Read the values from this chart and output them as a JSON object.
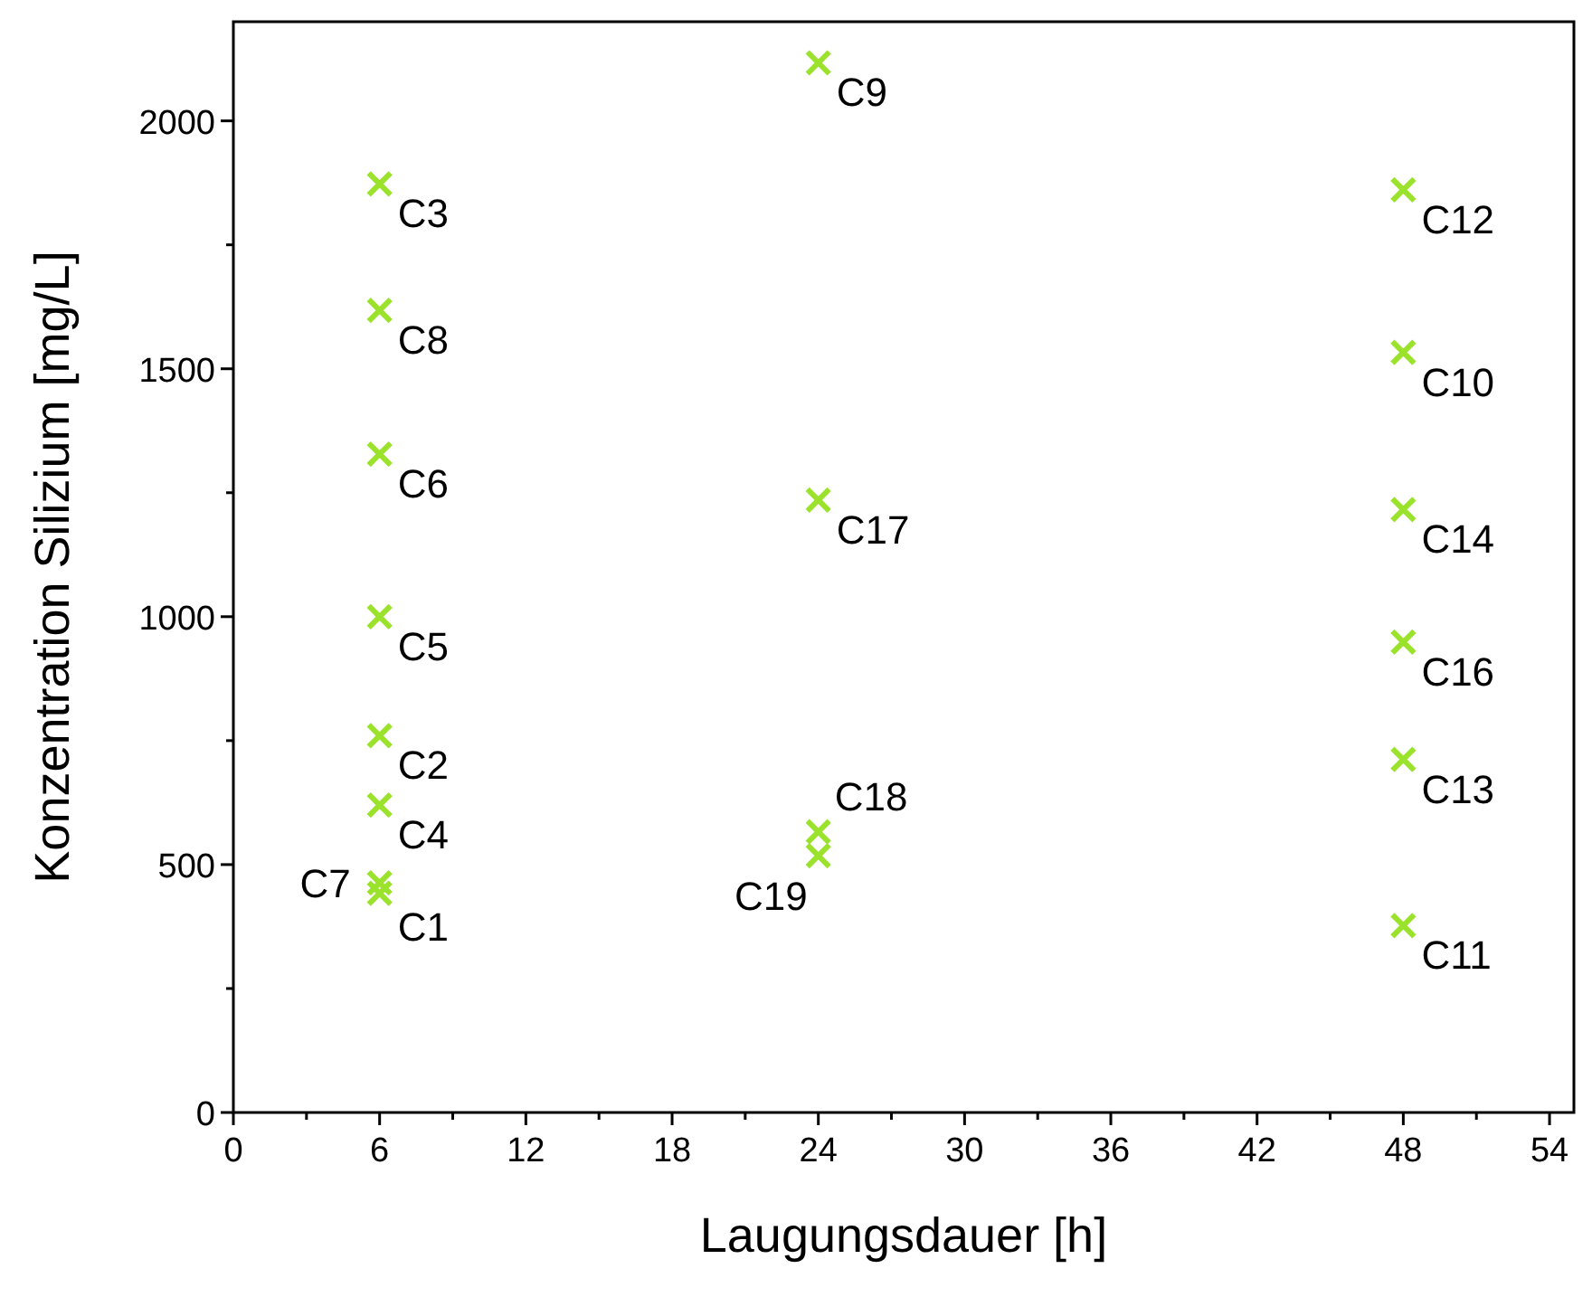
{
  "chart_data": {
    "type": "scatter",
    "xlabel": "Laugungsdauer [h]",
    "ylabel": "Konzentration Silizium [mg/L]",
    "x": [
      6,
      6,
      6,
      6,
      6,
      6,
      6,
      6,
      24,
      48,
      48,
      48,
      48,
      48,
      48,
      24,
      24,
      24
    ],
    "series": [
      {
        "color": "#9be22c",
        "values": [
          442,
          760,
          1873,
          620,
          1000,
          1328,
          463,
          1618,
          2117,
          1533,
          377,
          1861,
          712,
          1216,
          949,
          1235,
          566,
          518
        ]
      }
    ],
    "xlim": [
      0,
      55
    ],
    "xticks": [
      0,
      {
        "value": 3,
        "label": null
      },
      6,
      {
        "value": 9,
        "label": null
      },
      12,
      {
        "value": 15,
        "label": null
      },
      18,
      {
        "value": 21,
        "label": null
      },
      24,
      {
        "value": 27,
        "label": null
      },
      30,
      {
        "value": 33,
        "label": null
      },
      36,
      {
        "value": 39,
        "label": null
      },
      42,
      {
        "value": 45,
        "label": null
      },
      48,
      {
        "value": 51,
        "label": null
      },
      54
    ],
    "ylim": [
      0,
      2200
    ],
    "yticks": [
      0,
      {
        "value": 250,
        "label": null
      },
      500,
      {
        "value": 750,
        "label": null
      },
      1000,
      {
        "value": 1250,
        "label": null
      },
      1500,
      {
        "value": 1750,
        "label": null
      },
      2000
    ],
    "marker": "cross",
    "grid": false,
    "annotations": [
      {
        "text": "C1",
        "x": 6,
        "y": 442
      },
      {
        "text": "C2",
        "x": 6,
        "y": 760
      },
      {
        "text": "C3",
        "x": 6,
        "y": 1873
      },
      {
        "text": "C4",
        "x": 6,
        "y": 620
      },
      {
        "text": "C5",
        "x": 6,
        "y": 1000
      },
      {
        "text": "C6",
        "x": 6,
        "y": 1328
      },
      {
        "text": "C7",
        "x": 6,
        "y": 463
      },
      {
        "text": "C8",
        "x": 6,
        "y": 1618
      },
      {
        "text": "C9",
        "x": 24,
        "y": 2117
      },
      {
        "text": "C10",
        "x": 48,
        "y": 1533
      },
      {
        "text": "C11",
        "x": 48,
        "y": 377
      },
      {
        "text": "C12",
        "x": 48,
        "y": 1861
      },
      {
        "text": "C13",
        "x": 48,
        "y": 712
      },
      {
        "text": "C14",
        "x": 48,
        "y": 1216
      },
      {
        "text": "C16",
        "x": 48,
        "y": 949
      },
      {
        "text": "C17",
        "x": 24,
        "y": 1235
      },
      {
        "text": "C18",
        "x": 24,
        "y": 566
      },
      {
        "text": "C19",
        "x": 24,
        "y": 518
      }
    ]
  }
}
